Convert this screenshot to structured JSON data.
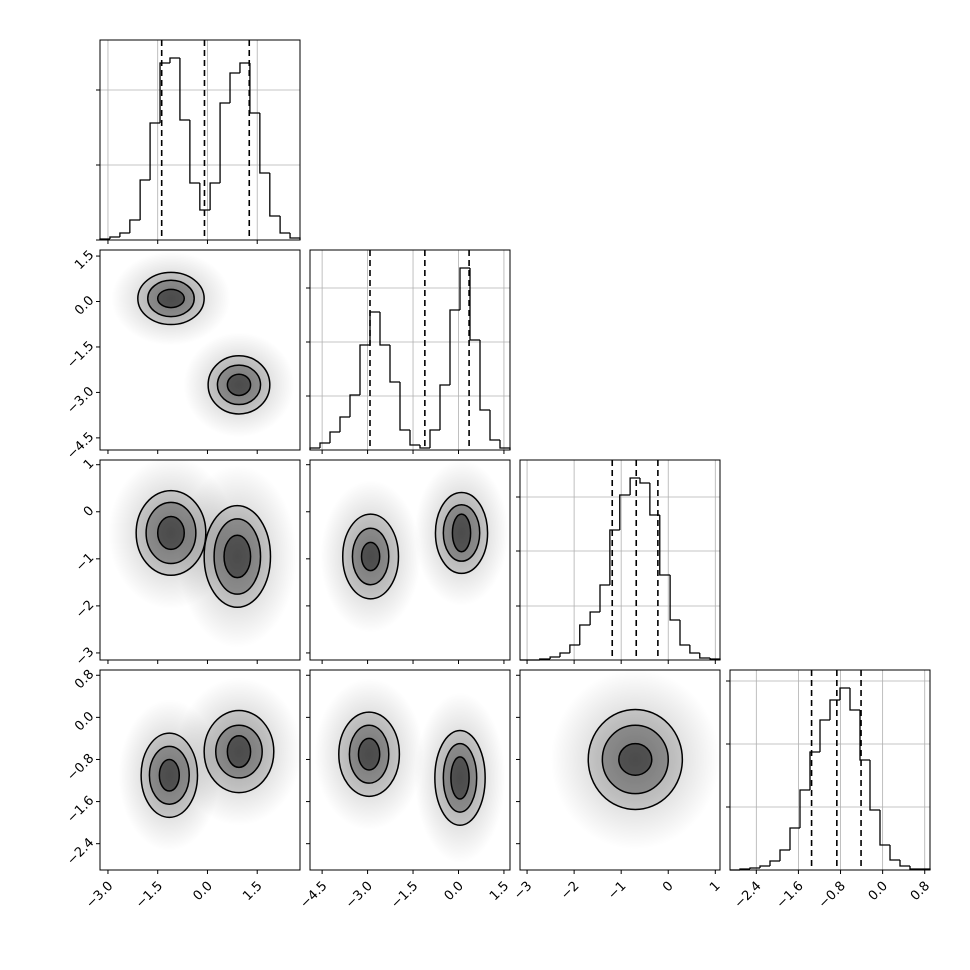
{
  "chart_data": {
    "type": "corner",
    "grid": true,
    "line_color": "#000000",
    "density_color": "#000000",
    "variables": [
      {
        "lim": [
          -3.24,
          2.79
        ],
        "ticks": [
          {
            "value": -3.0,
            "label": "−3.0"
          },
          {
            "value": -1.5,
            "label": "−1.5"
          },
          {
            "value": 0.0,
            "label": "0.0"
          },
          1.5
        ],
        "quantiles": [
          -1.38,
          -0.09,
          1.26
        ],
        "hist": {
          "bins": [
            -3.24,
            -2.94,
            -2.64,
            -2.34,
            -2.03,
            -1.73,
            -1.43,
            -1.13,
            -0.83,
            -0.53,
            -0.23,
            0.08,
            0.38,
            0.68,
            0.98,
            1.28,
            1.58,
            1.88,
            2.19,
            2.49,
            2.79
          ],
          "counts": [
            1,
            3,
            7,
            20,
            60,
            117,
            177,
            182,
            120,
            57,
            30,
            57,
            137,
            167,
            177,
            127,
            67,
            24,
            7,
            2
          ],
          "ylim": [
            0,
            200
          ],
          "yticks": [
            0,
            75,
            150
          ]
        }
      },
      {
        "lim": [
          -4.9,
          1.7
        ],
        "ticks": [
          {
            "value": -4.5,
            "label": "−4.5"
          },
          {
            "value": -3.0,
            "label": "−3.0"
          },
          {
            "value": -1.5,
            "label": "−1.5"
          },
          {
            "value": 0.0,
            "label": "0.0"
          },
          1.5
        ],
        "quantiles": [
          -2.92,
          -1.11,
          0.35
        ],
        "hist": {
          "bins": [
            -4.9,
            -4.57,
            -4.24,
            -3.91,
            -3.58,
            -3.25,
            -2.92,
            -2.59,
            -2.26,
            -1.93,
            -1.6,
            -1.27,
            -0.94,
            -0.61,
            -0.28,
            0.05,
            0.38,
            0.71,
            1.04,
            1.37,
            1.7
          ],
          "counts": [
            2,
            7,
            18,
            33,
            55,
            105,
            138,
            105,
            68,
            20,
            5,
            2,
            20,
            65,
            140,
            182,
            110,
            40,
            10,
            2
          ],
          "ylim": [
            0,
            200
          ],
          "yticks": [
            54,
            108,
            162
          ]
        }
      },
      {
        "lim": [
          -3.15,
          1.1
        ],
        "ticks": [
          {
            "value": -3,
            "label": "−3"
          },
          {
            "value": -2,
            "label": "−2"
          },
          {
            "value": -1,
            "label": "−1"
          },
          0,
          1
        ],
        "quantiles": [
          -1.19,
          -0.68,
          -0.22
        ],
        "hist": {
          "bins": [
            -3.15,
            -2.94,
            -2.73,
            -2.51,
            -2.3,
            -2.09,
            -1.88,
            -1.66,
            -1.45,
            -1.24,
            -1.03,
            -0.81,
            -0.6,
            -0.39,
            -0.18,
            0.04,
            0.25,
            0.46,
            0.67,
            0.89,
            1.1
          ],
          "counts": [
            0,
            0,
            1,
            3,
            7,
            15,
            35,
            48,
            75,
            130,
            165,
            182,
            177,
            145,
            85,
            40,
            15,
            7,
            2,
            1
          ],
          "ylim": [
            0,
            200
          ],
          "yticks": [
            54,
            109,
            163
          ]
        }
      },
      {
        "lim": [
          -2.9,
          0.9
        ],
        "ticks": [
          {
            "value": -2.4,
            "label": "−2.4"
          },
          {
            "value": -1.6,
            "label": "−1.6"
          },
          {
            "value": -0.8,
            "label": "−0.8"
          },
          {
            "value": 0.0,
            "label": "0.0"
          },
          0.8
        ],
        "quantiles": [
          -1.35,
          -0.87,
          -0.41
        ],
        "hist": {
          "bins": [
            -2.9,
            -2.71,
            -2.52,
            -2.33,
            -2.14,
            -1.95,
            -1.76,
            -1.57,
            -1.38,
            -1.19,
            -1.0,
            -0.81,
            -0.62,
            -0.43,
            -0.24,
            -0.05,
            0.14,
            0.33,
            0.52,
            0.71,
            0.9
          ],
          "counts": [
            0,
            1,
            2,
            4,
            9,
            20,
            42,
            80,
            118,
            150,
            170,
            182,
            160,
            110,
            60,
            25,
            10,
            4,
            1,
            1
          ],
          "ylim": [
            0,
            200
          ],
          "yticks": [
            63,
            126,
            189
          ]
        }
      }
    ],
    "pairs": [
      {
        "clusters": [
          {
            "center": [
              -1.1,
              0.1
            ],
            "rx": [
              1.0,
              0.7,
              0.4
            ],
            "ry": [
              0.86,
              0.6,
              0.3
            ]
          },
          {
            "center": [
              0.95,
              -2.75
            ],
            "rx": [
              0.93,
              0.65,
              0.35
            ],
            "ry": [
              0.96,
              0.65,
              0.35
            ]
          }
        ]
      },
      {
        "clusters": [
          {
            "center": [
              -1.1,
              -0.45
            ],
            "rx": [
              1.05,
              0.75,
              0.4
            ],
            "ry": [
              0.9,
              0.65,
              0.35
            ]
          },
          {
            "center": [
              0.9,
              -0.95
            ],
            "rx": [
              1.0,
              0.7,
              0.4
            ],
            "ry": [
              1.08,
              0.8,
              0.45
            ]
          }
        ]
      },
      {
        "clusters": [
          {
            "center": [
              -2.9,
              -0.95
            ],
            "rx": [
              0.92,
              0.6,
              0.3
            ],
            "ry": [
              0.9,
              0.6,
              0.3
            ]
          },
          {
            "center": [
              0.1,
              -0.45
            ],
            "rx": [
              0.86,
              0.6,
              0.3
            ],
            "ry": [
              0.86,
              0.6,
              0.4
            ]
          }
        ]
      },
      {
        "clusters": [
          {
            "center": [
              -1.15,
              -1.1
            ],
            "rx": [
              0.85,
              0.6,
              0.3
            ],
            "ry": [
              0.8,
              0.55,
              0.3
            ]
          },
          {
            "center": [
              0.95,
              -0.65
            ],
            "rx": [
              1.05,
              0.7,
              0.35
            ],
            "ry": [
              0.78,
              0.5,
              0.3
            ]
          }
        ]
      },
      {
        "clusters": [
          {
            "center": [
              -2.95,
              -0.7
            ],
            "rx": [
              1.0,
              0.65,
              0.35
            ],
            "ry": [
              0.8,
              0.55,
              0.3
            ]
          },
          {
            "center": [
              0.05,
              -1.15
            ],
            "rx": [
              0.83,
              0.55,
              0.3
            ],
            "ry": [
              0.9,
              0.65,
              0.4
            ]
          }
        ]
      },
      {
        "clusters": [
          {
            "center": [
              -0.7,
              -0.8
            ],
            "rx": [
              1.0,
              0.7,
              0.35
            ],
            "ry": [
              0.95,
              0.65,
              0.3
            ]
          }
        ]
      }
    ]
  }
}
